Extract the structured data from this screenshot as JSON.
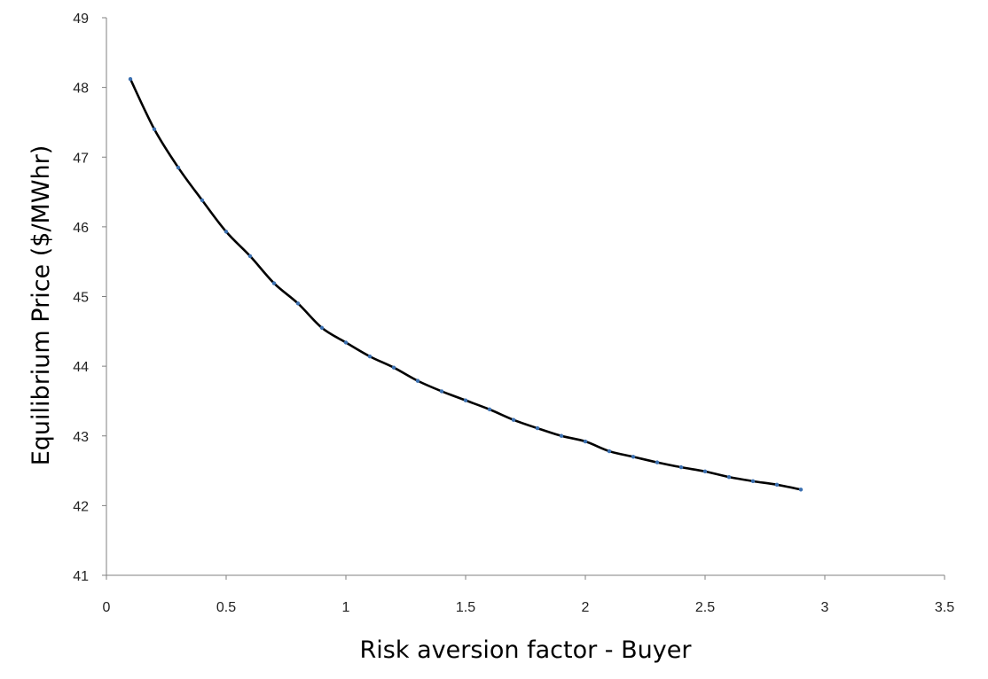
{
  "chart_data": {
    "type": "line",
    "xlabel": "Risk aversion factor - Buyer",
    "ylabel": "Equilibrium Price ($/MWhr)",
    "xlim": [
      0,
      3.5
    ],
    "ylim": [
      41,
      49
    ],
    "xticks": [
      "0",
      "0.5",
      "1",
      "1.5",
      "2",
      "2.5",
      "3",
      "3.5"
    ],
    "yticks": [
      "41",
      "42",
      "43",
      "44",
      "45",
      "46",
      "47",
      "48",
      "49"
    ],
    "grid": false,
    "legend": "none",
    "series": [
      {
        "color": "#000000",
        "marker_color": "#3a6fb0",
        "x": [
          0.1,
          0.2,
          0.3,
          0.4,
          0.5,
          0.6,
          0.7,
          0.8,
          0.9,
          1.0,
          1.1,
          1.2,
          1.3,
          1.4,
          1.5,
          1.6,
          1.7,
          1.8,
          1.9,
          2.0,
          2.1,
          2.2,
          2.3,
          2.4,
          2.5,
          2.6,
          2.7,
          2.8,
          2.9
        ],
        "y": [
          48.12,
          47.4,
          46.85,
          46.38,
          45.93,
          45.58,
          45.19,
          44.9,
          44.55,
          44.34,
          44.14,
          43.98,
          43.79,
          43.64,
          43.51,
          43.38,
          43.23,
          43.11,
          43.0,
          42.92,
          42.78,
          42.7,
          42.62,
          42.55,
          42.49,
          42.41,
          42.35,
          42.3,
          42.23
        ]
      }
    ]
  }
}
